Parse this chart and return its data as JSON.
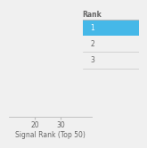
{
  "xlabel": "Signal Rank (Top 50)",
  "xlim": [
    10,
    42
  ],
  "ylim": [
    0,
    1
  ],
  "xticks": [
    20,
    30
  ],
  "table_rows": [
    1,
    2,
    3
  ],
  "highlight_row": 1,
  "highlight_color": "#45b8e8",
  "col_header": "Rank",
  "background_color": "#f0f0f0",
  "axis_color": "#bbbbbb",
  "text_color": "#666666",
  "font_size": 5.5
}
